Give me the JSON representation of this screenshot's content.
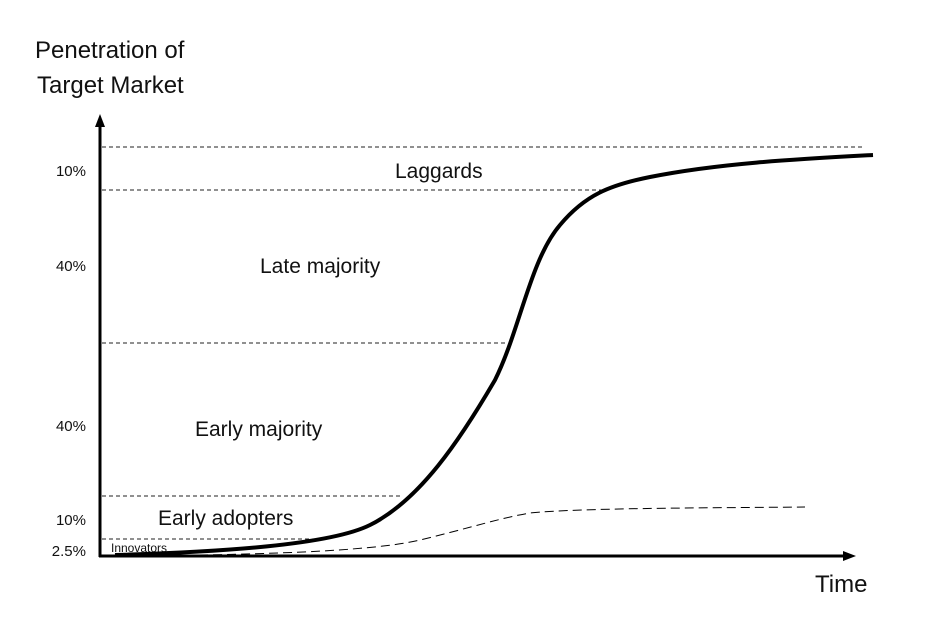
{
  "title_line1": "Penetration of",
  "title_line2": "Target Market",
  "x_axis_label": "Time",
  "segments": [
    {
      "name": "Innovators",
      "share": "2.5%"
    },
    {
      "name": "Early adopters",
      "share": "10%"
    },
    {
      "name": "Early majority",
      "share": "40%"
    },
    {
      "name": "Late majority",
      "share": "40%"
    },
    {
      "name": "Laggards",
      "share": "10%"
    }
  ],
  "colors": {
    "line": "#000000",
    "background": "#ffffff"
  }
}
